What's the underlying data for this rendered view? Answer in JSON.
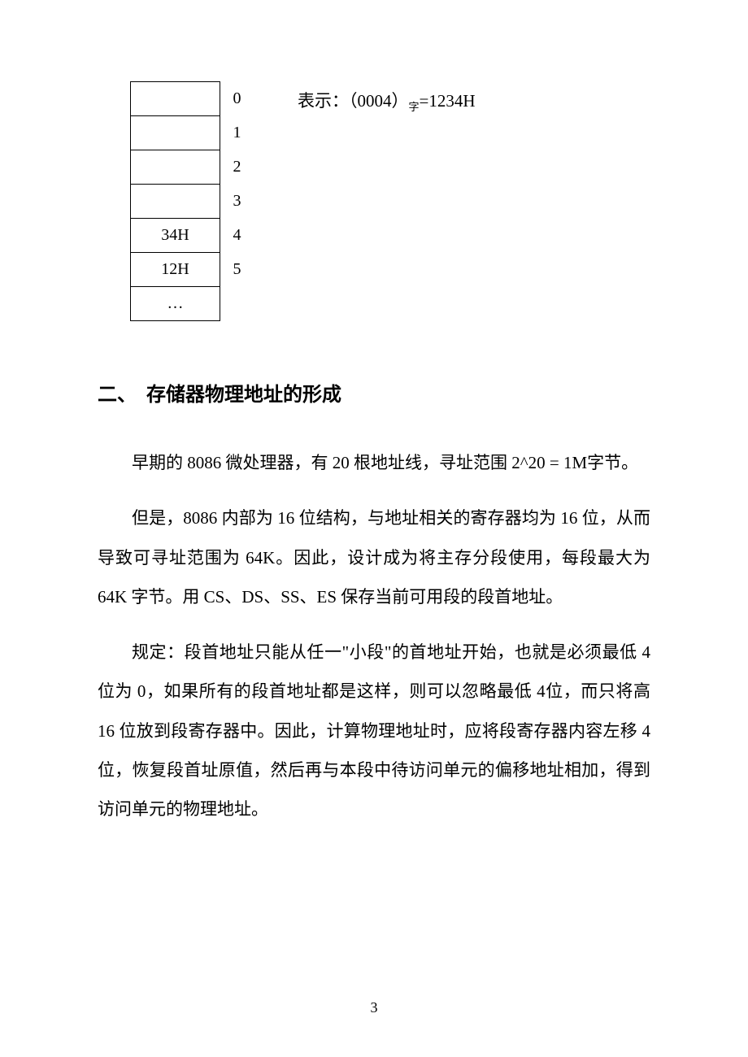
{
  "memory": {
    "rows": [
      {
        "cell": "",
        "label": "0"
      },
      {
        "cell": "",
        "label": "1"
      },
      {
        "cell": "",
        "label": "2"
      },
      {
        "cell": "",
        "label": "3"
      },
      {
        "cell": "34H",
        "label": "4"
      },
      {
        "cell": "12H",
        "label": "5"
      },
      {
        "cell": "…",
        "label": ""
      }
    ],
    "caption_prefix": "表示：（0004）",
    "caption_sub": "字",
    "caption_suffix": "=1234H"
  },
  "heading": {
    "number": "二、",
    "text": "存储器物理地址的形成"
  },
  "paragraphs": {
    "p1": "早期的 8086 微处理器，有 20 根地址线，寻址范围 2^20 = 1M字节。",
    "p2": "但是，8086 内部为 16 位结构，与地址相关的寄存器均为 16 位，从而导致可寻址范围为 64K。因此，设计成为将主存分段使用，每段最大为 64K 字节。用 CS、DS、SS、ES 保存当前可用段的段首地址。",
    "p3": "规定：段首地址只能从任一\"小段\"的首地址开始，也就是必须最低 4 位为 0，如果所有的段首地址都是这样，则可以忽略最低 4位，而只将高 16 位放到段寄存器中。因此，计算物理地址时，应将段寄存器内容左移 4 位，恢复段首址原值，然后再与本段中待访问单元的偏移地址相加，得到访问单元的物理地址。"
  },
  "page_number": "3"
}
